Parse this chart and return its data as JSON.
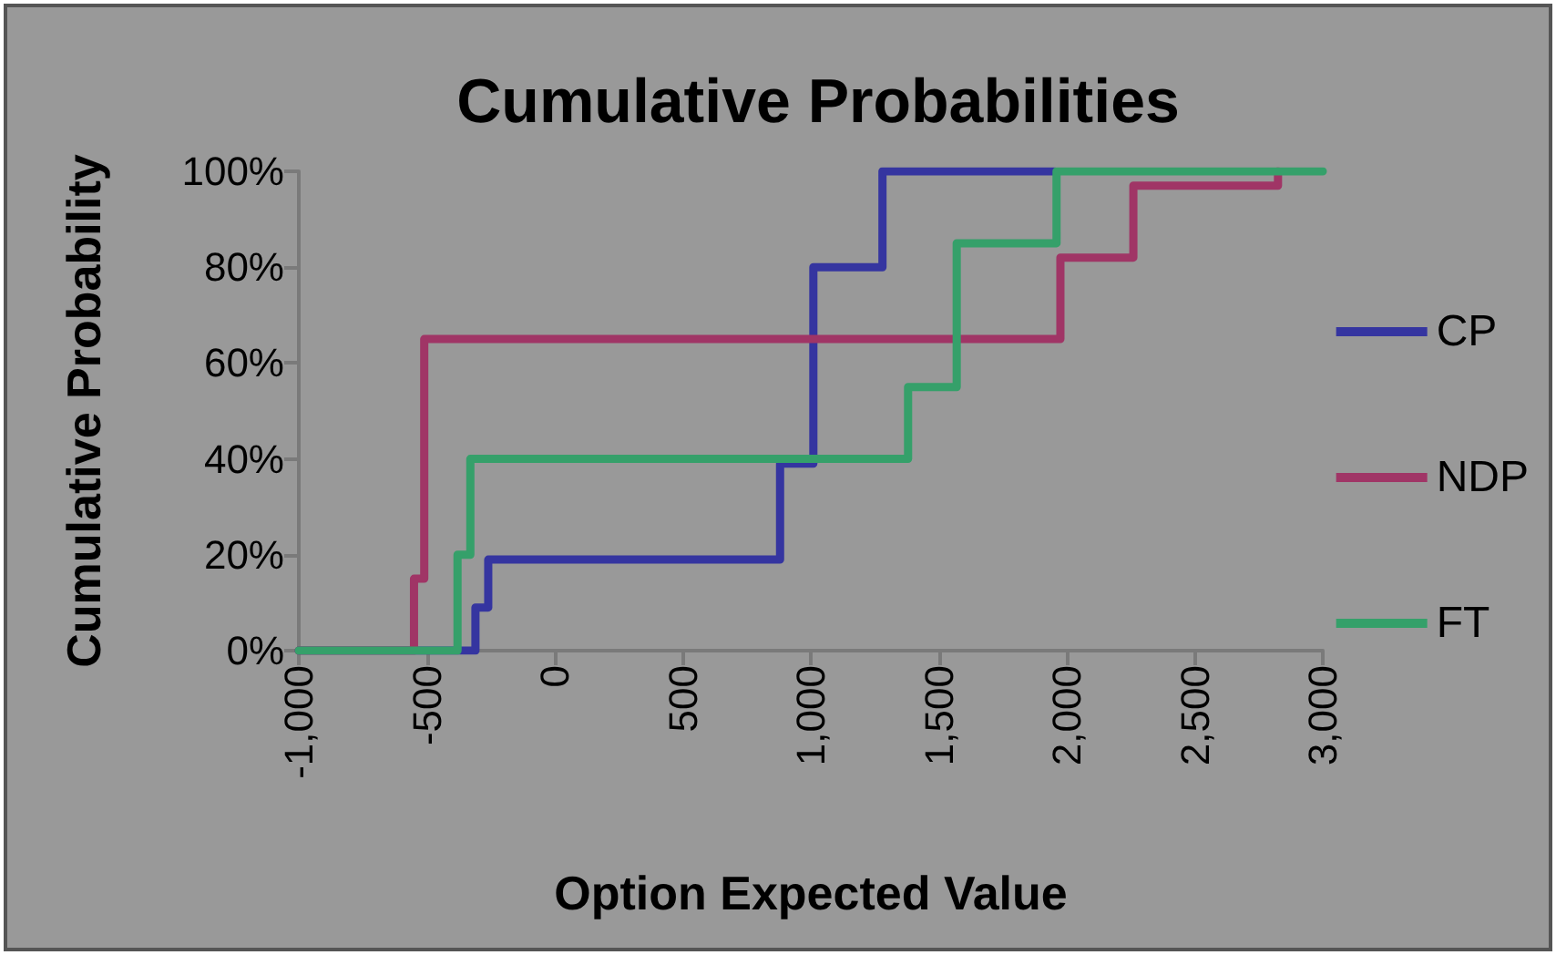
{
  "chart_data": {
    "type": "step",
    "title": "Cumulative Probabilities",
    "xlabel": "Option Expected Value",
    "ylabel": "Cumulative Probability",
    "series": [
      {
        "name": "CP",
        "color": "#3535a0",
        "x": [
          -1000,
          -310,
          -260,
          880,
          1010,
          1280,
          1950
        ],
        "values": [
          0,
          9,
          19,
          39,
          80,
          100,
          100
        ]
      },
      {
        "name": "NDP",
        "color": "#a03566",
        "x": [
          -1000,
          -550,
          -510,
          1975,
          2260,
          2825
        ],
        "values": [
          0,
          15,
          65,
          82,
          97,
          100
        ]
      },
      {
        "name": "FT",
        "color": "#35a06a",
        "x": [
          -1000,
          -380,
          -330,
          1380,
          1570,
          1960,
          3000
        ],
        "values": [
          0,
          20,
          40,
          55,
          85,
          100,
          100
        ]
      }
    ],
    "xlim": [
      -1000,
      3000
    ],
    "xticks": [
      {
        "value": -1000,
        "label": "-1,000"
      },
      {
        "value": -500,
        "label": "-500"
      },
      {
        "value": 0,
        "label": "0"
      },
      {
        "value": 500,
        "label": "500"
      },
      {
        "value": 1000,
        "label": "1,000"
      },
      {
        "value": 1500,
        "label": "1,500"
      },
      {
        "value": 2000,
        "label": "2,000"
      },
      {
        "value": 2500,
        "label": "2,500"
      },
      {
        "value": 3000,
        "label": "3,000"
      }
    ],
    "ylim": [
      0,
      100
    ],
    "yticks": [
      {
        "value": 0,
        "label": "0%"
      },
      {
        "value": 20,
        "label": "20%"
      },
      {
        "value": 40,
        "label": "40%"
      },
      {
        "value": 60,
        "label": "60%"
      },
      {
        "value": 80,
        "label": "80%"
      },
      {
        "value": 100,
        "label": "100%"
      }
    ],
    "grid": false,
    "legend": "right",
    "marker": "none",
    "line_style": "solid"
  }
}
